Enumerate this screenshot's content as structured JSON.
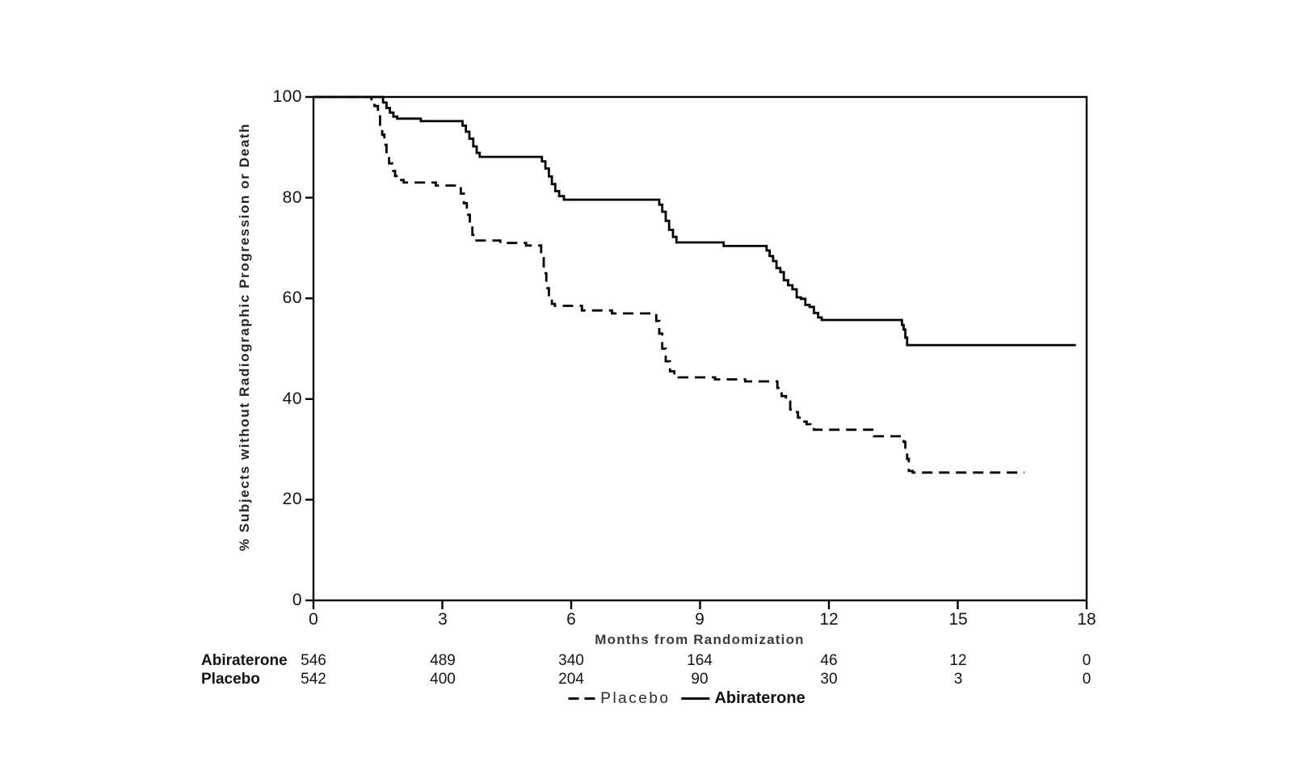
{
  "chart_data": {
    "type": "line",
    "subtype": "kaplan-meier-step",
    "title": "",
    "xlabel": "Months from Randomization",
    "ylabel": "% Subjects without Radiographic Progression or Death",
    "xlim": [
      0,
      18
    ],
    "ylim": [
      0,
      100
    ],
    "xticks": [
      0,
      3,
      6,
      9,
      12,
      15,
      18
    ],
    "yticks": [
      0,
      20,
      40,
      60,
      80,
      100
    ],
    "grid": false,
    "legend_position": "bottom-center",
    "line_color": "#000000",
    "series": [
      {
        "name": "Abiraterone",
        "style": "solid",
        "color": "#000000",
        "points": [
          [
            0,
            100
          ],
          [
            1.55,
            100
          ],
          [
            1.62,
            98.9
          ],
          [
            1.7,
            97.8
          ],
          [
            1.78,
            96.9
          ],
          [
            1.86,
            96.1
          ],
          [
            1.95,
            95.7
          ],
          [
            2.45,
            95.7
          ],
          [
            2.5,
            95.2
          ],
          [
            3.4,
            95.2
          ],
          [
            3.47,
            94.3
          ],
          [
            3.55,
            93.1
          ],
          [
            3.63,
            91.7
          ],
          [
            3.72,
            90.2
          ],
          [
            3.8,
            88.9
          ],
          [
            3.87,
            88.1
          ],
          [
            5.25,
            88.1
          ],
          [
            5.32,
            87.2
          ],
          [
            5.4,
            85.8
          ],
          [
            5.48,
            84.2
          ],
          [
            5.55,
            82.7
          ],
          [
            5.63,
            81.3
          ],
          [
            5.72,
            80.3
          ],
          [
            5.83,
            79.6
          ],
          [
            8.0,
            79.6
          ],
          [
            8.05,
            78.6
          ],
          [
            8.12,
            77.2
          ],
          [
            8.2,
            75.4
          ],
          [
            8.28,
            73.6
          ],
          [
            8.37,
            72.2
          ],
          [
            8.45,
            71.1
          ],
          [
            9.5,
            71.1
          ],
          [
            9.55,
            70.4
          ],
          [
            10.5,
            70.4
          ],
          [
            10.55,
            69.5
          ],
          [
            10.62,
            68.4
          ],
          [
            10.7,
            67.4
          ],
          [
            10.78,
            66.0
          ],
          [
            10.87,
            65.2
          ],
          [
            10.95,
            63.6
          ],
          [
            11.05,
            62.6
          ],
          [
            11.15,
            61.8
          ],
          [
            11.25,
            60.2
          ],
          [
            11.35,
            59.9
          ],
          [
            11.45,
            58.7
          ],
          [
            11.55,
            58.3
          ],
          [
            11.65,
            57.1
          ],
          [
            11.75,
            56.2
          ],
          [
            11.83,
            55.7
          ],
          [
            13.65,
            55.7
          ],
          [
            13.7,
            54.7
          ],
          [
            13.74,
            53.8
          ],
          [
            13.78,
            52.2
          ],
          [
            13.82,
            50.7
          ],
          [
            17.75,
            50.7
          ]
        ]
      },
      {
        "name": "Placebo",
        "style": "dashed",
        "color": "#000000",
        "points": [
          [
            0,
            100
          ],
          [
            1.28,
            100
          ],
          [
            1.35,
            99.3
          ],
          [
            1.42,
            98.2
          ],
          [
            1.5,
            96.5
          ],
          [
            1.55,
            94.5
          ],
          [
            1.6,
            92.5
          ],
          [
            1.65,
            90.5
          ],
          [
            1.7,
            88.5
          ],
          [
            1.76,
            86.8
          ],
          [
            1.83,
            85.3
          ],
          [
            1.9,
            84.3
          ],
          [
            2.0,
            83.5
          ],
          [
            2.1,
            83.0
          ],
          [
            2.8,
            83.0
          ],
          [
            2.85,
            82.4
          ],
          [
            3.38,
            82.4
          ],
          [
            3.43,
            80.8
          ],
          [
            3.5,
            78.9
          ],
          [
            3.57,
            76.6
          ],
          [
            3.64,
            74.3
          ],
          [
            3.7,
            72.6
          ],
          [
            3.76,
            71.5
          ],
          [
            4.3,
            71.5
          ],
          [
            4.35,
            71.0
          ],
          [
            4.9,
            71.0
          ],
          [
            4.95,
            70.5
          ],
          [
            5.25,
            70.5
          ],
          [
            5.3,
            68.0
          ],
          [
            5.36,
            65.0
          ],
          [
            5.42,
            62.0
          ],
          [
            5.48,
            60.0
          ],
          [
            5.55,
            58.9
          ],
          [
            5.62,
            58.5
          ],
          [
            6.2,
            58.5
          ],
          [
            6.25,
            57.6
          ],
          [
            6.9,
            57.6
          ],
          [
            6.95,
            57.0
          ],
          [
            7.92,
            57.0
          ],
          [
            7.98,
            55.5
          ],
          [
            8.05,
            53.0
          ],
          [
            8.12,
            50.0
          ],
          [
            8.2,
            47.5
          ],
          [
            8.3,
            45.5
          ],
          [
            8.4,
            44.7
          ],
          [
            8.5,
            44.3
          ],
          [
            9.3,
            44.3
          ],
          [
            9.35,
            43.9
          ],
          [
            10.0,
            43.9
          ],
          [
            10.05,
            43.5
          ],
          [
            10.73,
            43.5
          ],
          [
            10.8,
            42.2
          ],
          [
            10.9,
            40.6
          ],
          [
            11.0,
            39.5
          ],
          [
            11.1,
            37.9
          ],
          [
            11.18,
            37.4
          ],
          [
            11.28,
            36.3
          ],
          [
            11.38,
            35.5
          ],
          [
            11.48,
            35.0
          ],
          [
            11.57,
            34.5
          ],
          [
            11.65,
            33.9
          ],
          [
            13.0,
            33.9
          ],
          [
            13.05,
            32.6
          ],
          [
            13.7,
            32.6
          ],
          [
            13.74,
            31.5
          ],
          [
            13.78,
            29.7
          ],
          [
            13.82,
            28.1
          ],
          [
            13.86,
            25.7
          ],
          [
            13.95,
            25.4
          ],
          [
            16.55,
            25.4
          ]
        ]
      }
    ],
    "at_risk_table": {
      "x_values": [
        0,
        3,
        6,
        9,
        12,
        15,
        18
      ],
      "rows": [
        {
          "label": "Abiraterone",
          "values": [
            "546",
            "489",
            "340",
            "164",
            "46",
            "12",
            "0"
          ]
        },
        {
          "label": "Placebo",
          "values": [
            "542",
            "400",
            "204",
            "90",
            "30",
            "3",
            "0"
          ]
        }
      ]
    }
  },
  "legend": {
    "placebo_label": "Placebo",
    "abiraterone_label": "Abiraterone"
  }
}
